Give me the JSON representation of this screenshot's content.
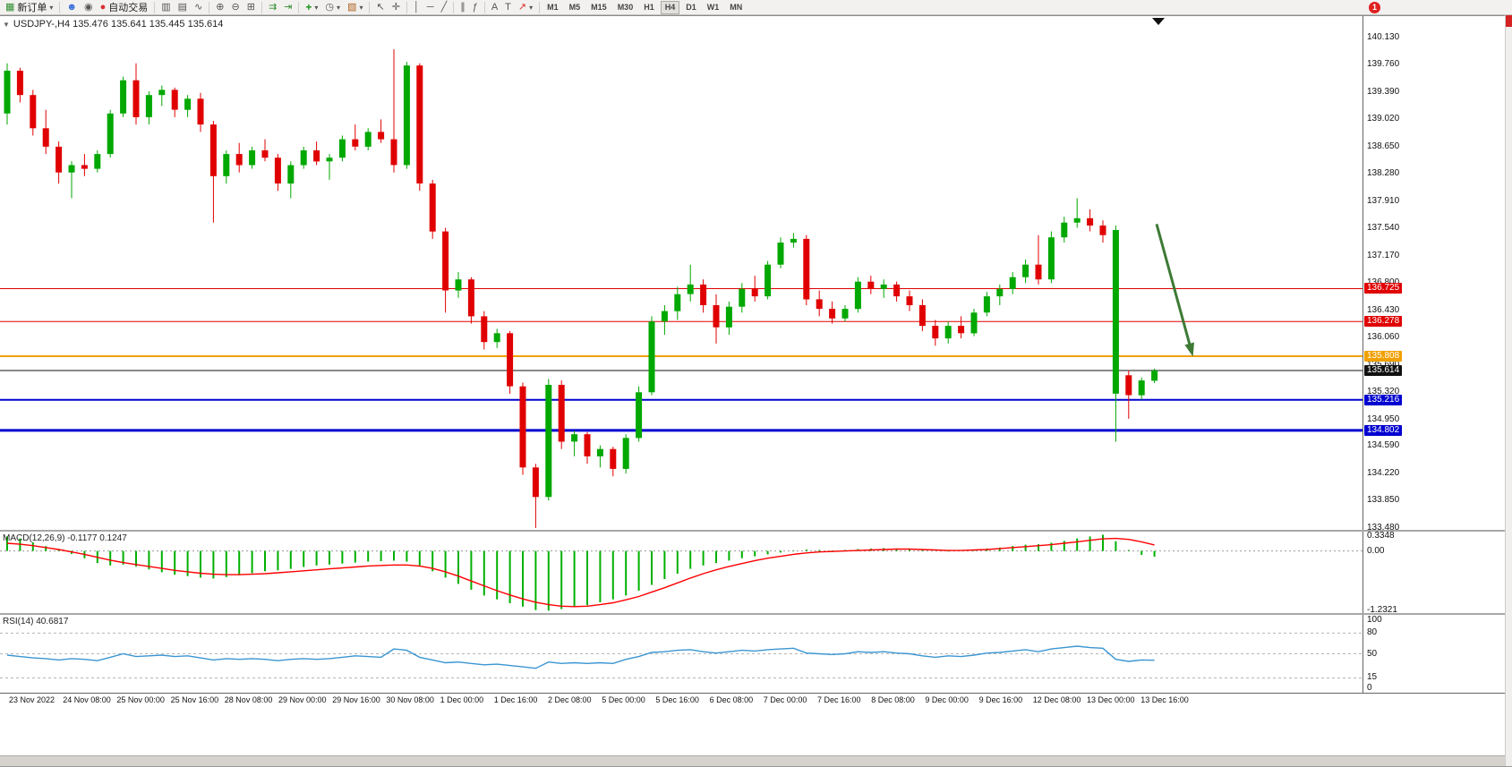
{
  "toolbar": {
    "new_order_label": "新订单",
    "autotrade_label": "自动交易",
    "timeframes": [
      "M1",
      "M5",
      "M15",
      "M30",
      "H1",
      "H4",
      "D1",
      "W1",
      "MN"
    ],
    "active_timeframe": "H4",
    "notification_count": "1"
  },
  "icons": {
    "collapse": "▼",
    "caret": "▾",
    "new_order": "▦",
    "person": "☻",
    "signal": "◉",
    "autotrade_dot": "●",
    "bars_chart": "▥",
    "candle_chart": "▤",
    "line_chart": "∿",
    "zoom_in": "⊕",
    "zoom_out": "⊖",
    "tile": "⊞",
    "auto_scroll": "⇉",
    "chart_shift": "⇥",
    "indicators": "+",
    "clock": "◷",
    "template": "▧",
    "cursor": "↖",
    "crosshair": "✛",
    "vline": "│",
    "hline": "─",
    "tline": "╱",
    "channel": "∥",
    "fibo": "ƒ",
    "text_a": "A",
    "label_t": "T",
    "arrows": "↗"
  },
  "chart": {
    "title": "USDJPY-,H4 135.476 135.641 135.445 135.614"
  },
  "macd": {
    "label": "MACD(12,26,9) -0.1177 0.1247"
  },
  "rsi": {
    "label": "RSI(14) 40.6817"
  },
  "chart_data": {
    "type": "candlestick",
    "symbol": "USDJPY-",
    "timeframe": "H4",
    "ohlc_display": {
      "open": 135.476,
      "high": 135.641,
      "low": 135.445,
      "close": 135.614
    },
    "current_price": 135.614,
    "price_axis": [
      140.13,
      139.76,
      139.39,
      139.02,
      138.65,
      138.28,
      137.91,
      137.54,
      137.17,
      136.8,
      136.43,
      136.06,
      135.69,
      135.32,
      134.95,
      134.59,
      134.22,
      133.85,
      133.48
    ],
    "levels": [
      {
        "price": 136.725,
        "label": "136.725",
        "color": "#e00000",
        "width": 1
      },
      {
        "price": 136.278,
        "label": "136.278",
        "color": "#e00000",
        "width": 1
      },
      {
        "price": 135.808,
        "label": "135.808",
        "color": "#f0a000",
        "width": 2
      },
      {
        "price": 135.216,
        "label": "135.216",
        "color": "#0000d0",
        "width": 2
      },
      {
        "price": 134.802,
        "label": "134.802",
        "color": "#0000d0",
        "width": 3
      }
    ],
    "annotation": {
      "type": "arrow",
      "direction": "down-right",
      "from_price": 137.6,
      "to_price": 135.92
    },
    "style": {
      "bull": "#00a800",
      "bear": "#e00000",
      "macd_hist": "#00b000",
      "macd_signal": "#ff0000",
      "rsi_line": "#3a96d2",
      "arrow": "#3d7a35"
    },
    "candles": [
      [
        139.1,
        139.78,
        138.95,
        139.68
      ],
      [
        139.68,
        139.72,
        139.25,
        139.35
      ],
      [
        139.35,
        139.42,
        138.8,
        138.9
      ],
      [
        138.9,
        139.15,
        138.55,
        138.65
      ],
      [
        138.65,
        138.72,
        138.15,
        138.3
      ],
      [
        138.3,
        138.45,
        137.95,
        138.4
      ],
      [
        138.4,
        138.55,
        138.25,
        138.35
      ],
      [
        138.35,
        138.6,
        138.3,
        138.55
      ],
      [
        138.55,
        139.15,
        138.5,
        139.1
      ],
      [
        139.1,
        139.6,
        139.05,
        139.55
      ],
      [
        139.55,
        139.78,
        138.95,
        139.05
      ],
      [
        139.05,
        139.4,
        138.95,
        139.35
      ],
      [
        139.35,
        139.48,
        139.2,
        139.42
      ],
      [
        139.42,
        139.45,
        139.05,
        139.15
      ],
      [
        139.15,
        139.35,
        139.05,
        139.3
      ],
      [
        139.3,
        139.38,
        138.85,
        138.95
      ],
      [
        138.95,
        139.0,
        137.62,
        138.25
      ],
      [
        138.25,
        138.6,
        138.15,
        138.55
      ],
      [
        138.55,
        138.7,
        138.3,
        138.4
      ],
      [
        138.4,
        138.65,
        138.35,
        138.6
      ],
      [
        138.6,
        138.75,
        138.45,
        138.5
      ],
      [
        138.5,
        138.55,
        138.05,
        138.15
      ],
      [
        138.15,
        138.45,
        137.95,
        138.4
      ],
      [
        138.4,
        138.65,
        138.35,
        138.6
      ],
      [
        138.6,
        138.72,
        138.4,
        138.45
      ],
      [
        138.45,
        138.55,
        138.2,
        138.5
      ],
      [
        138.5,
        138.8,
        138.45,
        138.75
      ],
      [
        138.75,
        138.95,
        138.6,
        138.65
      ],
      [
        138.65,
        138.9,
        138.6,
        138.85
      ],
      [
        138.85,
        139.02,
        138.7,
        138.75
      ],
      [
        138.75,
        139.97,
        138.3,
        138.4
      ],
      [
        138.4,
        139.8,
        138.35,
        139.75
      ],
      [
        139.75,
        139.78,
        138.05,
        138.15
      ],
      [
        138.15,
        138.2,
        137.4,
        137.5
      ],
      [
        137.5,
        137.55,
        136.4,
        136.7
      ],
      [
        136.7,
        136.95,
        136.6,
        136.85
      ],
      [
        136.85,
        136.88,
        136.25,
        136.35
      ],
      [
        136.35,
        136.42,
        135.9,
        136.0
      ],
      [
        136.0,
        136.18,
        135.92,
        136.12
      ],
      [
        136.12,
        136.15,
        135.3,
        135.4
      ],
      [
        135.4,
        135.45,
        134.2,
        134.3
      ],
      [
        134.3,
        134.35,
        133.48,
        133.9
      ],
      [
        133.9,
        135.5,
        133.85,
        135.42
      ],
      [
        135.42,
        135.48,
        134.55,
        134.65
      ],
      [
        134.65,
        134.8,
        134.45,
        134.75
      ],
      [
        134.75,
        134.78,
        134.35,
        134.45
      ],
      [
        134.45,
        134.6,
        134.3,
        134.55
      ],
      [
        134.55,
        134.58,
        134.18,
        134.28
      ],
      [
        134.28,
        134.75,
        134.22,
        134.7
      ],
      [
        134.7,
        135.4,
        134.65,
        135.32
      ],
      [
        135.32,
        136.35,
        135.28,
        136.28
      ],
      [
        136.28,
        136.5,
        136.1,
        136.42
      ],
      [
        136.42,
        136.75,
        136.3,
        136.65
      ],
      [
        136.65,
        137.05,
        136.55,
        136.78
      ],
      [
        136.78,
        136.85,
        136.4,
        136.5
      ],
      [
        136.5,
        136.65,
        135.98,
        136.2
      ],
      [
        136.2,
        136.55,
        136.1,
        136.48
      ],
      [
        136.48,
        136.8,
        136.4,
        136.72
      ],
      [
        136.72,
        136.9,
        136.55,
        136.62
      ],
      [
        136.62,
        137.1,
        136.58,
        137.05
      ],
      [
        137.05,
        137.42,
        137.0,
        137.35
      ],
      [
        137.35,
        137.48,
        137.28,
        137.4
      ],
      [
        137.4,
        137.45,
        136.5,
        136.58
      ],
      [
        136.58,
        136.7,
        136.35,
        136.45
      ],
      [
        136.45,
        136.55,
        136.25,
        136.32
      ],
      [
        136.32,
        136.5,
        136.28,
        136.45
      ],
      [
        136.45,
        136.88,
        136.4,
        136.82
      ],
      [
        136.82,
        136.9,
        136.65,
        136.72
      ],
      [
        136.72,
        136.85,
        136.6,
        136.78
      ],
      [
        136.78,
        136.82,
        136.55,
        136.62
      ],
      [
        136.62,
        136.7,
        136.42,
        136.5
      ],
      [
        136.5,
        136.58,
        136.15,
        136.22
      ],
      [
        136.22,
        136.3,
        135.95,
        136.05
      ],
      [
        136.05,
        136.28,
        135.98,
        136.22
      ],
      [
        136.22,
        136.35,
        136.05,
        136.12
      ],
      [
        136.12,
        136.45,
        136.08,
        136.4
      ],
      [
        136.4,
        136.68,
        136.35,
        136.62
      ],
      [
        136.62,
        136.78,
        136.5,
        136.72
      ],
      [
        136.72,
        136.95,
        136.65,
        136.88
      ],
      [
        136.88,
        137.12,
        136.8,
        137.05
      ],
      [
        137.05,
        137.45,
        136.78,
        136.85
      ],
      [
        136.85,
        137.5,
        136.8,
        137.42
      ],
      [
        137.42,
        137.7,
        137.35,
        137.62
      ],
      [
        137.62,
        137.95,
        137.55,
        137.68
      ],
      [
        137.68,
        137.8,
        137.5,
        137.58
      ],
      [
        137.58,
        137.65,
        137.35,
        137.45
      ],
      [
        135.3,
        137.58,
        134.65,
        137.52
      ],
      [
        135.55,
        135.62,
        134.96,
        135.28
      ],
      [
        135.28,
        135.52,
        135.22,
        135.48
      ],
      [
        135.476,
        135.641,
        135.445,
        135.614
      ]
    ],
    "time_labels": [
      "23 Nov 2022",
      "24 Nov 08:00",
      "25 Nov 00:00",
      "25 Nov 16:00",
      "28 Nov 08:00",
      "29 Nov 00:00",
      "29 Nov 16:00",
      "30 Nov 08:00",
      "1 Dec 00:00",
      "1 Dec 16:00",
      "2 Dec 08:00",
      "5 Dec 00:00",
      "5 Dec 16:00",
      "6 Dec 08:00",
      "7 Dec 00:00",
      "7 Dec 16:00",
      "8 Dec 08:00",
      "9 Dec 00:00",
      "9 Dec 16:00",
      "12 Dec 08:00",
      "13 Dec 00:00",
      "13 Dec 16:00"
    ],
    "macd": {
      "axis": [
        "0.3348",
        "0.00",
        "-1.2321"
      ],
      "histogram": [
        0.3,
        0.26,
        0.18,
        0.1,
        0.02,
        -0.06,
        -0.15,
        -0.25,
        -0.3,
        -0.28,
        -0.32,
        -0.38,
        -0.44,
        -0.49,
        -0.52,
        -0.55,
        -0.57,
        -0.54,
        -0.5,
        -0.46,
        -0.42,
        -0.4,
        -0.37,
        -0.33,
        -0.3,
        -0.28,
        -0.26,
        -0.24,
        -0.22,
        -0.21,
        -0.2,
        -0.22,
        -0.3,
        -0.42,
        -0.55,
        -0.68,
        -0.8,
        -0.92,
        -1.0,
        -1.08,
        -1.15,
        -1.22,
        -1.2321,
        -1.2,
        -1.16,
        -1.12,
        -1.06,
        -1.0,
        -0.92,
        -0.82,
        -0.7,
        -0.58,
        -0.47,
        -0.37,
        -0.3,
        -0.25,
        -0.2,
        -0.15,
        -0.11,
        -0.07,
        -0.03,
        0.01,
        0.03,
        0.02,
        0.01,
        0.02,
        0.04,
        0.05,
        0.06,
        0.05,
        0.04,
        0.02,
        0.0,
        -0.01,
        0.0,
        0.02,
        0.05,
        0.07,
        0.1,
        0.13,
        0.14,
        0.17,
        0.21,
        0.26,
        0.3,
        0.3348,
        0.2,
        0.02,
        -0.08,
        -0.1177
      ],
      "signal": [
        0.16,
        0.14,
        0.11,
        0.07,
        0.03,
        -0.02,
        -0.07,
        -0.13,
        -0.19,
        -0.24,
        -0.28,
        -0.32,
        -0.36,
        -0.4,
        -0.43,
        -0.46,
        -0.48,
        -0.49,
        -0.49,
        -0.48,
        -0.47,
        -0.45,
        -0.43,
        -0.41,
        -0.39,
        -0.37,
        -0.35,
        -0.33,
        -0.31,
        -0.3,
        -0.29,
        -0.29,
        -0.31,
        -0.36,
        -0.43,
        -0.52,
        -0.62,
        -0.72,
        -0.82,
        -0.91,
        -0.99,
        -1.06,
        -1.11,
        -1.14,
        -1.15,
        -1.14,
        -1.11,
        -1.07,
        -1.01,
        -0.94,
        -0.85,
        -0.76,
        -0.66,
        -0.56,
        -0.47,
        -0.39,
        -0.32,
        -0.26,
        -0.2,
        -0.15,
        -0.11,
        -0.07,
        -0.04,
        -0.02,
        -0.01,
        0.0,
        0.01,
        0.02,
        0.03,
        0.04,
        0.04,
        0.03,
        0.02,
        0.01,
        0.01,
        0.02,
        0.03,
        0.05,
        0.07,
        0.09,
        0.11,
        0.13,
        0.16,
        0.19,
        0.22,
        0.25,
        0.26,
        0.24,
        0.19,
        0.1247
      ]
    },
    "rsi": {
      "axis": [
        "100",
        "80",
        "50",
        "15",
        "0"
      ],
      "levels": [
        80,
        50,
        15
      ],
      "values": [
        48,
        46,
        44,
        43,
        41,
        43,
        42,
        40,
        45,
        50,
        46,
        47,
        48,
        46,
        47,
        44,
        41,
        43,
        42,
        43,
        42,
        40,
        42,
        43,
        42,
        43,
        45,
        47,
        46,
        45,
        57,
        55,
        45,
        41,
        37,
        38,
        36,
        34,
        35,
        33,
        31,
        29,
        38,
        36,
        37,
        36,
        37,
        36,
        42,
        46,
        52,
        53,
        55,
        56,
        53,
        51,
        53,
        55,
        54,
        56,
        57,
        58,
        51,
        50,
        49,
        50,
        53,
        52,
        53,
        51,
        50,
        47,
        45,
        47,
        46,
        48,
        51,
        52,
        54,
        56,
        53,
        57,
        59,
        61,
        59,
        58,
        42,
        39,
        41,
        40.68
      ]
    }
  }
}
